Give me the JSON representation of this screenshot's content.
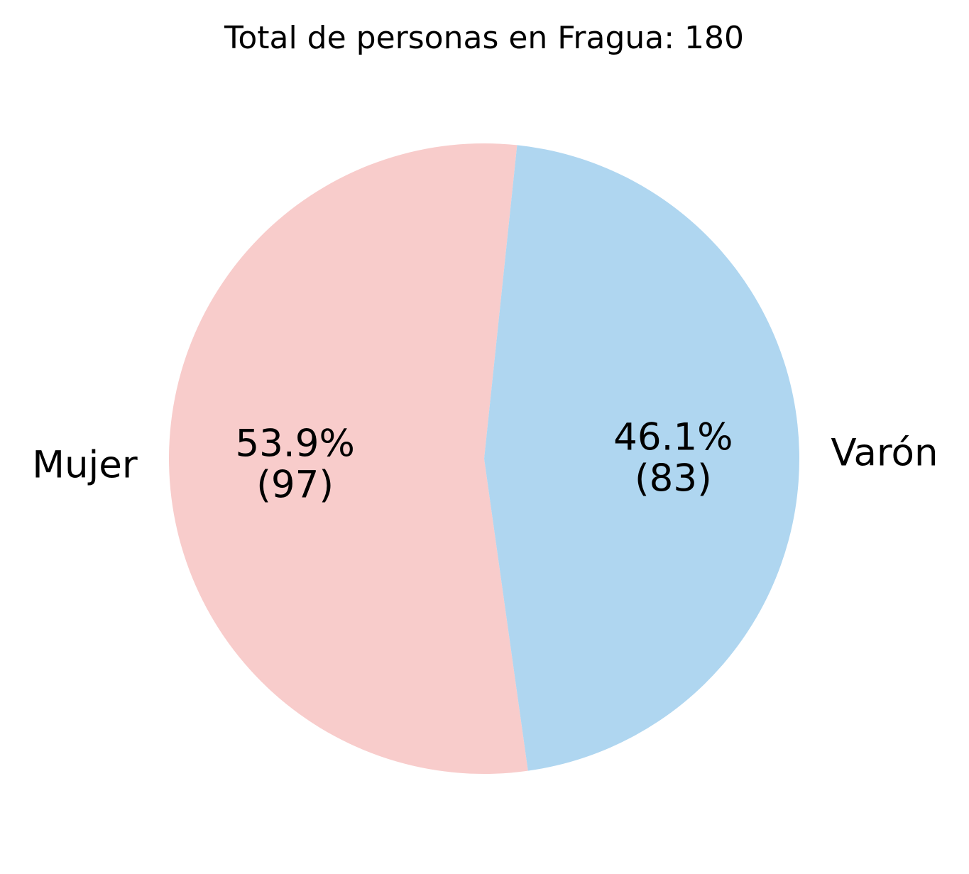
{
  "chart_data": {
    "type": "pie",
    "title": "Total de personas en Fragua: 180",
    "slices": [
      {
        "label": "Mujer",
        "value": 97,
        "percent_label": "53.9%",
        "count_label": "(97)",
        "color": "#f8cccb"
      },
      {
        "label": "Varón",
        "value": 83,
        "percent_label": "46.1%",
        "count_label": "(83)",
        "color": "#afd6f0"
      }
    ],
    "start_angle_deg": 84,
    "direction": "counterclockwise",
    "legend": "none"
  }
}
